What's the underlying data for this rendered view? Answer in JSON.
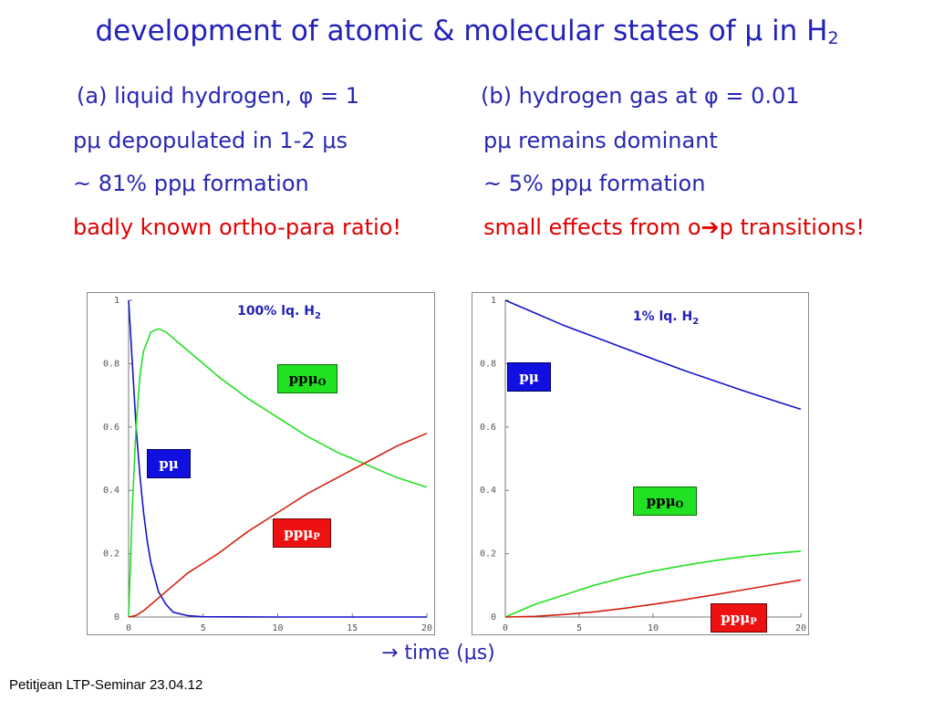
{
  "title": {
    "text": "development of atomic & molecular states of μ in H",
    "sub": "2"
  },
  "left": {
    "heading": "(a) liquid hydrogen, φ = 1",
    "line1": "pμ depopulated in 1-2 μs",
    "line2": "~ 81% ppμ formation",
    "line3": "badly known ortho-para ratio!"
  },
  "right": {
    "heading": "(b) hydrogen gas at φ = 0.01",
    "line1": "pμ remains dominant",
    "line2": "~ 5% ppμ formation",
    "line3_a": "small effects from o",
    "line3_arrow": "➔",
    "line3_b": "p transitions!"
  },
  "xaxis_caption": "→ time (μs)",
  "footer": "Petitjean LTP-Seminar 23.04.12",
  "colors": {
    "pmu": "#1414c8",
    "ppmu_o": "#22e022",
    "ppmu_p": "#d42010",
    "text_blue": "#2727b3",
    "text_red": "#e00000"
  },
  "chart_data": [
    {
      "type": "line",
      "title": "100% lq. H",
      "title_sub": "2",
      "xlim": [
        0,
        20
      ],
      "ylim": [
        0,
        1
      ],
      "xticks": [
        "0",
        "5",
        "10",
        "15",
        "20"
      ],
      "yticks": [
        "0",
        "0.2",
        "0.4",
        "0.6",
        "0.8",
        "1"
      ],
      "grid": false,
      "series": [
        {
          "name": "pμ",
          "label_main": "pμ",
          "label_sub": "",
          "color": "#1414c8",
          "x": [
            0,
            0.25,
            0.5,
            0.75,
            1,
            1.25,
            1.5,
            2,
            2.5,
            3,
            4,
            5,
            10,
            15,
            20
          ],
          "y": [
            1.0,
            0.8,
            0.6,
            0.45,
            0.33,
            0.24,
            0.17,
            0.08,
            0.04,
            0.015,
            0.004,
            0.001,
            0,
            0,
            0
          ]
        },
        {
          "name": "ppμO",
          "label_main": "ppμ",
          "label_sub": "O",
          "color": "#22e022",
          "x": [
            0,
            0.25,
            0.5,
            0.75,
            1,
            1.5,
            2,
            2.5,
            3,
            4,
            5,
            6,
            8,
            10,
            12,
            14,
            16,
            18,
            20
          ],
          "y": [
            0,
            0.35,
            0.6,
            0.76,
            0.84,
            0.9,
            0.91,
            0.9,
            0.88,
            0.84,
            0.8,
            0.76,
            0.69,
            0.63,
            0.57,
            0.52,
            0.48,
            0.44,
            0.41
          ]
        },
        {
          "name": "ppμP",
          "label_main": "ppμ",
          "label_sub": "P",
          "color": "#d42010",
          "x": [
            0,
            0.5,
            1,
            2,
            3,
            4,
            5,
            6,
            8,
            10,
            12,
            14,
            16,
            18,
            20
          ],
          "y": [
            0,
            0.005,
            0.02,
            0.06,
            0.1,
            0.14,
            0.17,
            0.2,
            0.27,
            0.33,
            0.39,
            0.44,
            0.49,
            0.54,
            0.58
          ]
        }
      ]
    },
    {
      "type": "line",
      "title": "1% lq. H",
      "title_sub": "2",
      "xlim": [
        0,
        20
      ],
      "ylim": [
        0,
        1
      ],
      "xticks": [
        "0",
        "5",
        "10",
        "15",
        "20"
      ],
      "yticks": [
        "0",
        "0.2",
        "0.4",
        "0.6",
        "0.8",
        "1"
      ],
      "grid": false,
      "series": [
        {
          "name": "pμ",
          "label_main": "pμ",
          "label_sub": "",
          "color": "#1414c8",
          "x": [
            0,
            2,
            4,
            6,
            8,
            10,
            12,
            14,
            16,
            18,
            20
          ],
          "y": [
            1.0,
            0.96,
            0.92,
            0.885,
            0.85,
            0.815,
            0.78,
            0.748,
            0.716,
            0.686,
            0.656
          ]
        },
        {
          "name": "ppμO",
          "label_main": "ppμ",
          "label_sub": "O",
          "color": "#22e022",
          "x": [
            0,
            2,
            4,
            6,
            8,
            10,
            12,
            14,
            16,
            18,
            20
          ],
          "y": [
            0,
            0.04,
            0.07,
            0.1,
            0.125,
            0.145,
            0.162,
            0.177,
            0.19,
            0.2,
            0.208
          ]
        },
        {
          "name": "ppμP",
          "label_main": "ppμ",
          "label_sub": "P",
          "color": "#d42010",
          "x": [
            0,
            2,
            4,
            6,
            8,
            10,
            12,
            14,
            16,
            18,
            20
          ],
          "y": [
            0,
            0.002,
            0.008,
            0.016,
            0.027,
            0.04,
            0.054,
            0.069,
            0.085,
            0.101,
            0.117
          ]
        }
      ]
    }
  ]
}
